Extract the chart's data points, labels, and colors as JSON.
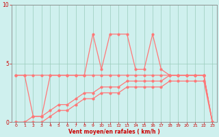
{
  "xlabel": "Vent moyen/en rafales ( km/h )",
  "background_color": "#cff0ee",
  "grid_color": "#99ccbb",
  "line_color": "#ff7777",
  "ylim": [
    0,
    10
  ],
  "xlim": [
    -0.5,
    23.5
  ],
  "yticks": [
    0,
    5,
    10
  ],
  "xticks": [
    0,
    1,
    2,
    3,
    4,
    5,
    6,
    7,
    8,
    9,
    10,
    11,
    12,
    13,
    14,
    15,
    16,
    17,
    18,
    19,
    20,
    21,
    22,
    23
  ],
  "x": [
    0,
    1,
    2,
    3,
    4,
    5,
    6,
    7,
    8,
    9,
    10,
    11,
    12,
    13,
    14,
    15,
    16,
    17,
    18,
    19,
    20,
    21,
    22,
    23
  ],
  "y_rafales": [
    4.0,
    4.0,
    0.5,
    0.5,
    4.0,
    4.0,
    4.0,
    4.0,
    4.0,
    7.5,
    4.5,
    7.5,
    7.5,
    7.5,
    4.5,
    4.5,
    7.5,
    4.5,
    4.0,
    4.0,
    4.0,
    4.0,
    4.0,
    0.0
  ],
  "y_moyen": [
    4.0,
    4.0,
    4.0,
    4.0,
    4.0,
    4.0,
    4.0,
    4.0,
    4.0,
    4.0,
    4.0,
    4.0,
    4.0,
    4.0,
    4.0,
    4.0,
    4.0,
    4.0,
    4.0,
    4.0,
    4.0,
    4.0,
    4.0,
    0.0
  ],
  "y_trend": [
    0.0,
    0.0,
    0.5,
    0.5,
    1.0,
    1.5,
    1.5,
    2.0,
    2.5,
    2.5,
    3.0,
    3.0,
    3.0,
    3.5,
    3.5,
    3.5,
    3.5,
    3.5,
    4.0,
    4.0,
    4.0,
    4.0,
    4.0,
    0.0
  ],
  "y_trend2": [
    0.0,
    0.0,
    0.0,
    0.0,
    0.5,
    1.0,
    1.0,
    1.5,
    2.0,
    2.0,
    2.5,
    2.5,
    2.5,
    3.0,
    3.0,
    3.0,
    3.0,
    3.0,
    3.5,
    3.5,
    3.5,
    3.5,
    3.5,
    0.0
  ]
}
